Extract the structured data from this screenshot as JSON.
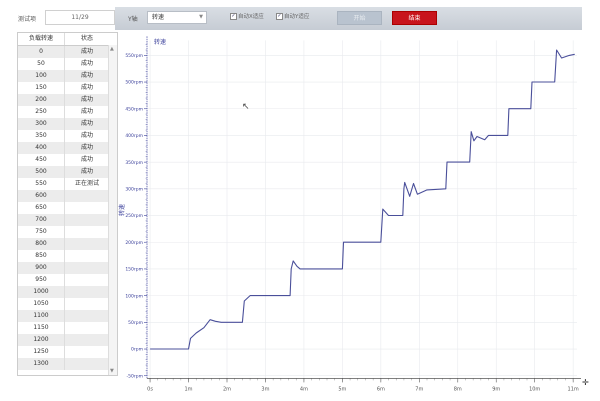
{
  "toolbar": {
    "test_item_label": "测试项",
    "test_item_value": "11/29",
    "y_axis_label": "Y轴",
    "y_axis_selected": "转速",
    "auto_x_label": "自动X适应",
    "auto_x_checked": true,
    "auto_y_label": "自动Y适应",
    "auto_y_checked": true,
    "start_label": "开始",
    "stop_label": "结束",
    "stop_color": "#c8141c"
  },
  "table": {
    "headers": [
      "负载转速",
      "状态"
    ],
    "rows": [
      [
        "0",
        "成功"
      ],
      [
        "50",
        "成功"
      ],
      [
        "100",
        "成功"
      ],
      [
        "150",
        "成功"
      ],
      [
        "200",
        "成功"
      ],
      [
        "250",
        "成功"
      ],
      [
        "300",
        "成功"
      ],
      [
        "350",
        "成功"
      ],
      [
        "400",
        "成功"
      ],
      [
        "450",
        "成功"
      ],
      [
        "500",
        "成功"
      ],
      [
        "550",
        "正在测试"
      ],
      [
        "600",
        ""
      ],
      [
        "650",
        ""
      ],
      [
        "700",
        ""
      ],
      [
        "750",
        ""
      ],
      [
        "800",
        ""
      ],
      [
        "850",
        ""
      ],
      [
        "900",
        ""
      ],
      [
        "950",
        ""
      ],
      [
        "1000",
        ""
      ],
      [
        "1050",
        ""
      ],
      [
        "1100",
        ""
      ],
      [
        "1150",
        ""
      ],
      [
        "1200",
        ""
      ],
      [
        "1250",
        ""
      ],
      [
        "1300",
        ""
      ]
    ]
  },
  "chart_data": {
    "type": "line",
    "title": "转速",
    "ylabel": "转速",
    "xlabel": "",
    "line_color": "#4a4f9a",
    "grid": true,
    "xlim": [
      -0.08,
      11.1
    ],
    "ylim": [
      -55,
      578
    ],
    "x_ticks": [
      "0s",
      "1m",
      "2m",
      "3m",
      "4m",
      "5m",
      "6m",
      "7m",
      "8m",
      "9m",
      "10m",
      "11m"
    ],
    "y_ticks": [
      "-50rpm",
      "0rpm",
      "50rpm",
      "100rpm",
      "150rpm",
      "200rpm",
      "250rpm",
      "300rpm",
      "350rpm",
      "400rpm",
      "450rpm",
      "500rpm",
      "550rpm"
    ],
    "series": [
      {
        "x": [
          0,
          1.0,
          1.05,
          1.2,
          1.4,
          1.56,
          1.7,
          1.85,
          2.4,
          2.45,
          2.6,
          3.64,
          3.67,
          3.72,
          3.82,
          3.9,
          5.0,
          5.03,
          6.0,
          6.05,
          6.2,
          6.57,
          6.6,
          6.62,
          6.75,
          6.85,
          6.95,
          7.2,
          7.69,
          7.72,
          8.31,
          8.35,
          8.42,
          8.5,
          8.7,
          8.8,
          9.3,
          9.33,
          9.9,
          9.93,
          10.52,
          10.57,
          10.7,
          10.9,
          11.04
        ],
        "y": [
          0,
          0,
          20,
          30,
          40,
          55,
          52,
          50,
          50,
          90,
          100,
          100,
          150,
          165,
          155,
          150,
          150,
          200,
          200,
          262,
          250,
          250,
          300,
          312,
          286,
          310,
          290,
          298,
          300,
          350,
          350,
          407,
          390,
          398,
          392,
          400,
          400,
          450,
          450,
          500,
          500,
          560,
          545,
          550,
          552
        ]
      }
    ]
  }
}
